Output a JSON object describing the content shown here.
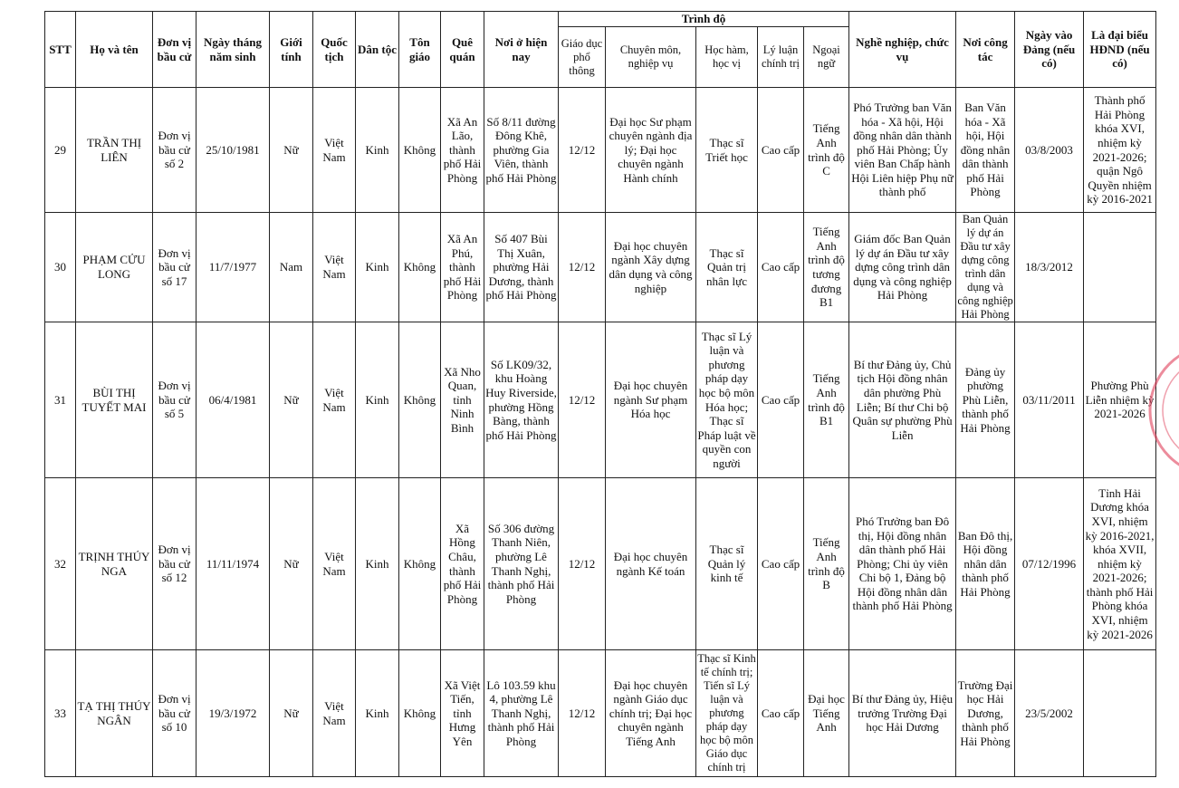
{
  "table": {
    "group": "Trình độ",
    "columns": [
      "STT",
      "Họ và tên",
      "Đơn vị bầu cử",
      "Ngày tháng năm sinh",
      "Giới tính",
      "Quốc tịch",
      "Dân tộc",
      "Tôn giáo",
      "Quê quán",
      "Nơi ở hiện nay",
      "Giáo dục phổ thông",
      "Chuyên môn, nghiệp vụ",
      "Học hàm, học vị",
      "Lý luận chính trị",
      "Ngoại ngữ",
      "Nghề nghiệp, chức vụ",
      "Nơi công tác",
      "Ngày vào Đảng (nếu có)",
      "Là đại biểu HĐND (nếu có)"
    ],
    "rows": [
      [
        "29",
        "TRẦN THỊ LIÊN",
        "Đơn vị bầu cử số 2",
        "25/10/1981",
        "Nữ",
        "Việt Nam",
        "Kinh",
        "Không",
        "Xã An Lão, thành phố Hải Phòng",
        "Số 8/11 đường Đông Khê, phường Gia Viên, thành phố Hải Phòng",
        "12/12",
        "Đại học Sư phạm chuyên ngành địa lý; Đại học chuyên ngành Hành chính",
        "Thạc sĩ Triết học",
        "Cao cấp",
        "Tiếng Anh trình độ C",
        "Phó Trưởng ban Văn hóa - Xã hội, Hội đồng nhân dân thành phố Hải Phòng; Ủy viên Ban Chấp hành Hội Liên hiệp Phụ nữ thành phố",
        "Ban Văn hóa - Xã hội, Hội đồng nhân dân thành phố Hải Phòng",
        "03/8/2003",
        "Thành phố Hải Phòng khóa XVI, nhiệm kỳ 2021-2026; quận Ngô Quyền nhiệm kỳ 2016-2021"
      ],
      [
        "30",
        "PHẠM CỬU LONG",
        "Đơn vị bầu cử số 17",
        "11/7/1977",
        "Nam",
        "Việt Nam",
        "Kinh",
        "Không",
        "Xã An Phú, thành phố Hải Phòng",
        "Số 407 Bùi Thị Xuân, phường Hải Dương, thành phố Hải Phòng",
        "12/12",
        "Đại học chuyên ngành Xây dựng dân dụng và công nghiệp",
        "Thạc sĩ Quản trị nhân lực",
        "Cao cấp",
        "Tiếng Anh trình độ tương đương B1",
        "Giám đốc Ban Quản lý dự án Đầu tư xây dựng công trình dân dụng và công nghiệp Hải Phòng",
        "Ban Quản lý dự án Đầu tư xây dựng công trình dân dụng và công nghiệp Hải Phòng",
        "18/3/2012",
        null
      ],
      [
        "31",
        "BÙI THỊ TUYẾT MAI",
        "Đơn vị bầu cử số 5",
        "06/4/1981",
        "Nữ",
        "Việt Nam",
        "Kinh",
        "Không",
        "Xã Nho Quan, tỉnh Ninh Bình",
        "Số LK09/32, khu Hoàng Huy Riverside, phường Hồng Bàng, thành phố Hải Phòng",
        "12/12",
        "Đại học chuyên ngành Sư phạm Hóa học",
        "Thạc sĩ Lý luận và phương pháp dạy học bộ môn Hóa học; Thạc sĩ Pháp luật về quyền con người",
        "Cao cấp",
        "Tiếng Anh trình độ B1",
        "Bí thư Đảng ủy, Chủ tịch Hội đồng nhân dân phường Phù Liễn; Bí thư Chi bộ Quân sự phường Phù Liễn",
        "Đảng ủy phường Phù Liễn, thành phố Hải Phòng",
        "03/11/2011",
        "Phường Phù Liễn nhiệm kỳ 2021-2026"
      ],
      [
        "32",
        "TRỊNH THÚY NGA",
        "Đơn vị bầu cử số 12",
        "11/11/1974",
        "Nữ",
        "Việt Nam",
        "Kinh",
        "Không",
        "Xã Hồng Châu, thành phố Hải Phòng",
        "Số 306 đường Thanh Niên, phường Lê Thanh Nghị, thành phố Hải Phòng",
        "12/12",
        "Đại học chuyên ngành Kế toán",
        "Thạc sĩ Quản lý kinh tế",
        "Cao cấp",
        "Tiếng Anh trình độ B",
        "Phó Trưởng ban Đô thị, Hội đồng nhân dân thành phố Hải Phòng; Chi ủy viên Chi bộ 1, Đảng bộ Hội đồng nhân dân thành phố Hải Phòng",
        "Ban Đô thị, Hội đồng nhân dân thành phố Hải Phòng",
        "07/12/1996",
        "Tỉnh Hải Dương khóa XVI, nhiệm kỳ 2016-2021, khóa XVII, nhiệm kỳ 2021-2026; thành phố Hải Phòng khóa XVI, nhiệm kỳ 2021-2026"
      ],
      [
        "33",
        "TẠ THỊ THÚY NGÂN",
        "Đơn vị bầu cử số 10",
        "19/3/1972",
        "Nữ",
        "Việt Nam",
        "Kinh",
        "Không",
        "Xã Việt Tiến, tỉnh Hưng Yên",
        "Lô 103.59 khu 4, phường Lê Thanh Nghị, thành phố Hải Phòng",
        "12/12",
        "Đại học chuyên ngành Giáo dục chính trị; Đại học chuyên ngành Tiếng Anh",
        "Thạc sĩ Kinh tế chính trị; Tiến sĩ Lý luận và phương pháp dạy học bộ môn Giáo dục chính trị",
        "Cao cấp",
        "Đại học Tiếng Anh",
        "Bí thư Đảng ủy, Hiệu trưởng Trường Đại học Hải Dương",
        "Trường Đại học Hải Dương, thành phố Hải Phòng",
        "23/5/2002",
        null
      ]
    ]
  }
}
